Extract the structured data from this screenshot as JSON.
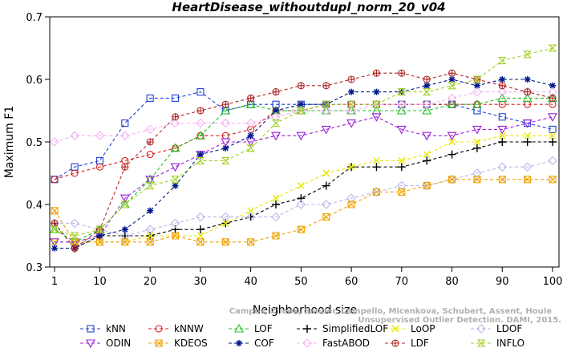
{
  "chart_data": {
    "type": "line",
    "title": "HeartDisease_withoutdupl_norm_20_v04",
    "xlabel": "Neighborhood size",
    "ylabel": "Maximum F1",
    "xlim": [
      1,
      100
    ],
    "ylim": [
      0.3,
      0.7
    ],
    "x_ticks": [
      1,
      10,
      20,
      30,
      40,
      50,
      60,
      70,
      80,
      90,
      100
    ],
    "y_ticks": [
      0.3,
      0.4,
      0.5,
      0.6,
      0.7
    ],
    "grid": false,
    "legend_position": "bottom",
    "x": [
      1,
      5,
      10,
      15,
      20,
      25,
      30,
      35,
      40,
      45,
      50,
      55,
      60,
      65,
      70,
      75,
      80,
      85,
      90,
      95,
      100
    ],
    "series": [
      {
        "name": "kNN",
        "color": "#1f3fd8",
        "marker": "square",
        "values": [
          0.44,
          0.46,
          0.47,
          0.53,
          0.57,
          0.57,
          0.58,
          0.55,
          0.56,
          0.56,
          0.56,
          0.56,
          0.56,
          0.56,
          0.56,
          0.56,
          0.56,
          0.55,
          0.54,
          0.53,
          0.52
        ]
      },
      {
        "name": "kNNW",
        "color": "#d82020",
        "marker": "circle",
        "values": [
          0.44,
          0.45,
          0.46,
          0.47,
          0.48,
          0.49,
          0.51,
          0.51,
          0.52,
          0.55,
          0.55,
          0.56,
          0.56,
          0.56,
          0.56,
          0.56,
          0.56,
          0.56,
          0.56,
          0.56,
          0.56
        ]
      },
      {
        "name": "LOF",
        "color": "#22c022",
        "marker": "triangle",
        "values": [
          0.36,
          0.34,
          0.36,
          0.4,
          0.44,
          0.49,
          0.51,
          0.55,
          0.56,
          0.55,
          0.55,
          0.55,
          0.55,
          0.55,
          0.55,
          0.55,
          0.56,
          0.56,
          0.57,
          0.57,
          0.57
        ]
      },
      {
        "name": "SimplifiedLOF",
        "color": "#000000",
        "marker": "plus",
        "values": [
          0.37,
          0.33,
          0.35,
          0.35,
          0.35,
          0.36,
          0.36,
          0.37,
          0.38,
          0.4,
          0.41,
          0.43,
          0.46,
          0.46,
          0.46,
          0.47,
          0.48,
          0.49,
          0.5,
          0.5,
          0.5
        ]
      },
      {
        "name": "LoOP",
        "color": "#e8e800",
        "marker": "x",
        "values": [
          0.34,
          0.34,
          0.34,
          0.34,
          0.35,
          0.35,
          0.35,
          0.37,
          0.39,
          0.41,
          0.43,
          0.45,
          0.46,
          0.47,
          0.47,
          0.48,
          0.5,
          0.5,
          0.51,
          0.51,
          0.51
        ]
      },
      {
        "name": "LDOF",
        "color": "#b8b8e8",
        "marker": "diamond",
        "values": [
          0.37,
          0.37,
          0.36,
          0.35,
          0.36,
          0.37,
          0.38,
          0.38,
          0.38,
          0.38,
          0.4,
          0.4,
          0.41,
          0.42,
          0.43,
          0.43,
          0.44,
          0.45,
          0.46,
          0.46,
          0.47
        ]
      },
      {
        "name": "ODIN",
        "color": "#9a20d8",
        "marker": "triangle-down",
        "values": [
          0.34,
          0.34,
          0.35,
          0.41,
          0.44,
          0.46,
          0.48,
          0.5,
          0.5,
          0.51,
          0.51,
          0.52,
          0.53,
          0.54,
          0.52,
          0.51,
          0.51,
          0.52,
          0.52,
          0.53,
          0.54
        ]
      },
      {
        "name": "KDEOS",
        "color": "#f0a000",
        "marker": "square-x",
        "values": [
          0.39,
          0.34,
          0.34,
          0.34,
          0.34,
          0.35,
          0.34,
          0.34,
          0.34,
          0.35,
          0.36,
          0.38,
          0.4,
          0.42,
          0.42,
          0.43,
          0.44,
          0.44,
          0.44,
          0.44,
          0.44
        ]
      },
      {
        "name": "COF",
        "color": "#001a8a",
        "marker": "star",
        "values": [
          0.33,
          0.33,
          0.35,
          0.36,
          0.39,
          0.43,
          0.48,
          0.49,
          0.51,
          0.55,
          0.56,
          0.56,
          0.58,
          0.58,
          0.58,
          0.59,
          0.6,
          0.59,
          0.6,
          0.6,
          0.59
        ]
      },
      {
        "name": "FastABOD",
        "color": "#f4b0f0",
        "marker": "diamond",
        "values": [
          0.5,
          0.51,
          0.51,
          0.51,
          0.52,
          0.53,
          0.53,
          0.53,
          0.53,
          0.54,
          0.55,
          0.55,
          0.55,
          0.56,
          0.56,
          0.56,
          0.57,
          0.58,
          0.58,
          0.58,
          0.58
        ]
      },
      {
        "name": "LDF",
        "color": "#b02828",
        "marker": "circle-plus",
        "values": [
          0.37,
          0.33,
          0.36,
          0.46,
          0.5,
          0.54,
          0.55,
          0.56,
          0.57,
          0.58,
          0.59,
          0.59,
          0.6,
          0.61,
          0.61,
          0.6,
          0.61,
          0.6,
          0.59,
          0.58,
          0.57
        ]
      },
      {
        "name": "INFLO",
        "color": "#a0d020",
        "marker": "hourglass",
        "values": [
          0.36,
          0.35,
          0.36,
          0.4,
          0.43,
          0.44,
          0.47,
          0.47,
          0.49,
          0.53,
          0.55,
          0.56,
          0.56,
          0.56,
          0.58,
          0.58,
          0.59,
          0.6,
          0.63,
          0.64,
          0.65
        ]
      }
    ],
    "annotation": "Campos, Zimek, Sander, Campello, Micenkova, Schubert, Assent, Houle: Unsupervised Outlier Detection. DAMI, 2015."
  },
  "watermark_lines": [
    "Campos, Zimek, Sander, Campello, Micenkova, Schubert, Assent, Houle",
    "Unsupervised Outlier Detection. DAMI, 2015."
  ]
}
